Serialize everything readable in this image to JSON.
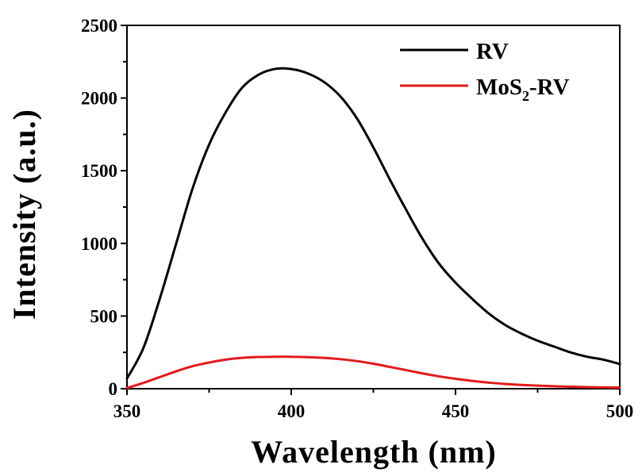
{
  "chart_data": {
    "type": "line",
    "xlabel": "Wavelength (nm)",
    "ylabel": "Intensity (a.u.)",
    "xlim": [
      350,
      500
    ],
    "ylim": [
      0,
      2500
    ],
    "xticks": [
      350,
      400,
      450,
      500
    ],
    "yticks": [
      0,
      500,
      1000,
      1500,
      2000,
      2500
    ],
    "xtick_labels": [
      "350",
      "400",
      "450",
      "500"
    ],
    "ytick_labels": [
      "0",
      "500",
      "1000",
      "1500",
      "2000",
      "2500"
    ],
    "grid": false,
    "legend_position": "top-right",
    "series": [
      {
        "name": "RV",
        "color": "#000000",
        "x": [
          350,
          355,
          360,
          365,
          370,
          375,
          380,
          385,
          390,
          395,
          400,
          405,
          410,
          415,
          420,
          425,
          430,
          435,
          440,
          445,
          450,
          455,
          460,
          465,
          470,
          475,
          480,
          485,
          490,
          495,
          500
        ],
        "y": [
          70,
          280,
          620,
          1000,
          1380,
          1680,
          1900,
          2070,
          2160,
          2200,
          2200,
          2170,
          2110,
          2010,
          1860,
          1660,
          1440,
          1230,
          1030,
          860,
          730,
          620,
          520,
          440,
          380,
          330,
          290,
          250,
          220,
          200,
          170
        ]
      },
      {
        "name": "MoS",
        "name_sub": "2",
        "name_suffix": "-RV",
        "color": "#e31a1c",
        "x": [
          350,
          355,
          360,
          365,
          370,
          375,
          380,
          385,
          390,
          395,
          400,
          405,
          410,
          415,
          420,
          425,
          430,
          435,
          440,
          445,
          450,
          455,
          460,
          465,
          470,
          475,
          480,
          485,
          490,
          495,
          500
        ],
        "y": [
          5,
          40,
          80,
          120,
          155,
          180,
          200,
          212,
          218,
          220,
          220,
          217,
          212,
          203,
          190,
          172,
          150,
          128,
          105,
          85,
          68,
          54,
          42,
          33,
          26,
          21,
          17,
          14,
          11,
          9,
          8
        ]
      }
    ]
  }
}
